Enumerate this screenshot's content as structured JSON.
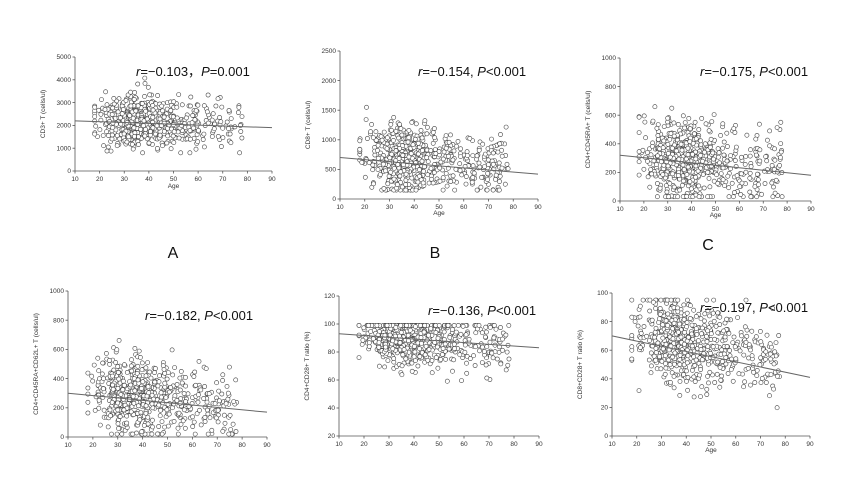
{
  "chart_data": [
    {
      "type": "scatter",
      "panel": "A",
      "ylabel": "CD3+ T (cells/ul)",
      "xlabel": "Age",
      "xlim": [
        10,
        90
      ],
      "ylim": [
        0,
        5000
      ],
      "xticks": [
        10,
        20,
        30,
        40,
        50,
        60,
        70,
        80,
        90
      ],
      "yticks": [
        0,
        1000,
        2000,
        3000,
        4000,
        5000
      ],
      "annotation_r": "r=−0.103，",
      "annotation_p": "P=0.001",
      "trend": {
        "x": [
          10,
          90
        ],
        "y": [
          2200,
          1900
        ]
      },
      "cloud": {
        "center": 2100,
        "spread": 550,
        "n": 650,
        "seed": 11,
        "min": 800,
        "max": 4800
      }
    },
    {
      "type": "scatter",
      "panel": "B",
      "ylabel": "CD8+ T (cells/ul)",
      "xlabel": "Age",
      "xlim": [
        10,
        90
      ],
      "ylim": [
        0,
        2500
      ],
      "xticks": [
        10,
        20,
        30,
        40,
        50,
        60,
        70,
        80,
        90
      ],
      "yticks": [
        0,
        500,
        1000,
        1500,
        2000,
        2500
      ],
      "annotation_r": "r=−0.154, ",
      "annotation_p": "P<0.001",
      "trend": {
        "x": [
          10,
          90
        ],
        "y": [
          700,
          420
        ]
      },
      "cloud": {
        "center": 640,
        "spread": 260,
        "n": 650,
        "seed": 23,
        "min": 150,
        "max": 2100
      }
    },
    {
      "type": "scatter",
      "panel": "C",
      "ylabel": "CD4+CD45RA+ T (cells/ul)",
      "xlabel": "Age",
      "xlim": [
        10,
        90
      ],
      "ylim": [
        0,
        1000
      ],
      "xticks": [
        10,
        20,
        30,
        40,
        50,
        60,
        70,
        80,
        90
      ],
      "yticks": [
        0,
        200,
        400,
        600,
        800,
        1000
      ],
      "annotation_r": "r=−0.175, ",
      "annotation_p": "P<0.001",
      "trend": {
        "x": [
          10,
          90
        ],
        "y": [
          320,
          180
        ]
      },
      "cloud": {
        "center": 280,
        "spread": 140,
        "n": 650,
        "seed": 37,
        "min": 30,
        "max": 900
      }
    },
    {
      "type": "scatter",
      "panel": "",
      "ylabel": "CD4+CD45RA+CD62L+ T (cells/ul)",
      "xlabel": "",
      "xlim": [
        10,
        90
      ],
      "ylim": [
        0,
        1000
      ],
      "xticks": [
        10,
        20,
        30,
        40,
        50,
        60,
        70,
        80,
        90
      ],
      "yticks": [
        0,
        200,
        400,
        600,
        800,
        1000
      ],
      "annotation_r": "r=−0.182, ",
      "annotation_p": "P<0.001",
      "trend": {
        "x": [
          10,
          90
        ],
        "y": [
          300,
          170
        ]
      },
      "cloud": {
        "center": 260,
        "spread": 130,
        "n": 650,
        "seed": 41,
        "min": 20,
        "max": 870
      }
    },
    {
      "type": "scatter",
      "panel": "",
      "ylabel": "CD4+CD28+ T ratio (%)",
      "xlabel": "",
      "xlim": [
        10,
        90
      ],
      "ylim": [
        20,
        120
      ],
      "xticks": [
        10,
        20,
        30,
        40,
        50,
        60,
        70,
        80,
        90
      ],
      "yticks": [
        20,
        40,
        60,
        80,
        100,
        120
      ],
      "annotation_r": "r=−0.136, ",
      "annotation_p": "P<0.001",
      "trend": {
        "x": [
          10,
          90
        ],
        "y": [
          93,
          83
        ]
      },
      "cloud": {
        "center": 88,
        "spread": 10,
        "n": 650,
        "seed": 53,
        "min": 30,
        "max": 99
      }
    },
    {
      "type": "scatter",
      "panel": "",
      "ylabel": "CD8+CD28+ T ratio (%)",
      "xlabel": "Age",
      "xlim": [
        10,
        90
      ],
      "ylim": [
        0,
        100
      ],
      "xticks": [
        10,
        20,
        30,
        40,
        50,
        60,
        70,
        80,
        90
      ],
      "yticks": [
        0,
        20,
        40,
        60,
        80,
        100
      ],
      "annotation_r": "r=−0.197, ",
      "annotation_p": "P<0.001",
      "trend": {
        "x": [
          10,
          90
        ],
        "y": [
          70,
          41
        ]
      },
      "cloud": {
        "center": 62,
        "spread": 14,
        "n": 650,
        "seed": 67,
        "min": 10,
        "max": 95
      }
    }
  ]
}
